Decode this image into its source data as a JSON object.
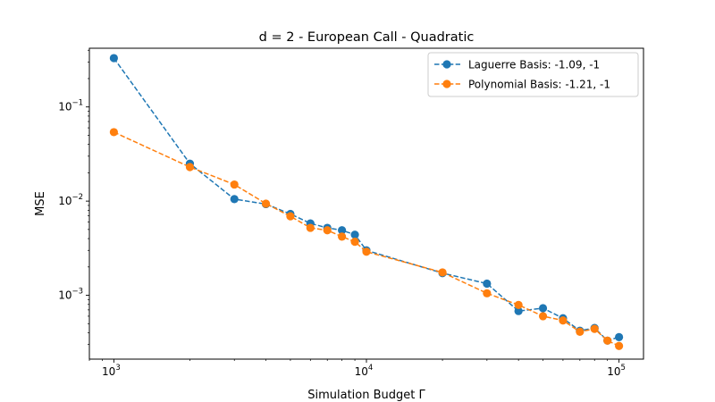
{
  "chart_data": {
    "type": "line",
    "title": "d = 2 - European Call - Quadratic",
    "xlabel": "Simulation Budget Γ",
    "ylabel": "MSE",
    "xscale": "log",
    "yscale": "log",
    "xlim": [
      800,
      125000
    ],
    "ylim": [
      0.00021,
      0.42
    ],
    "x_ticks": [
      {
        "value": 1000,
        "base": "10",
        "exp": "3"
      },
      {
        "value": 10000,
        "base": "10",
        "exp": "4"
      },
      {
        "value": 100000,
        "base": "10",
        "exp": "5"
      }
    ],
    "y_ticks": [
      {
        "value": 0.1,
        "base": "10",
        "exp": "−1"
      },
      {
        "value": 0.01,
        "base": "10",
        "exp": "−2"
      },
      {
        "value": 0.001,
        "base": "10",
        "exp": "−3"
      }
    ],
    "grid": false,
    "legend_position": "upper right",
    "x": [
      1000,
      2000,
      3000,
      4000,
      5000,
      6000,
      7000,
      8000,
      9000,
      10000,
      20000,
      30000,
      40000,
      50000,
      60000,
      70000,
      80000,
      90000,
      100000
    ],
    "series": [
      {
        "name": "Laguerre Basis: -1.09, -1",
        "color": "#1f77b4",
        "values": [
          0.33,
          0.025,
          0.0105,
          0.0093,
          0.0073,
          0.0058,
          0.0052,
          0.0049,
          0.0044,
          0.003,
          0.00172,
          0.00133,
          0.00068,
          0.00073,
          0.00057,
          0.00042,
          0.00045,
          0.00033,
          0.00036
        ]
      },
      {
        "name": "Polynomial Basis: -1.21, -1",
        "color": "#ff7f0e",
        "values": [
          0.054,
          0.023,
          0.015,
          0.0094,
          0.0069,
          0.0052,
          0.0049,
          0.0042,
          0.0037,
          0.0029,
          0.00175,
          0.00105,
          0.00079,
          0.0006,
          0.00054,
          0.00041,
          0.00044,
          0.00033,
          0.00029
        ]
      }
    ]
  }
}
